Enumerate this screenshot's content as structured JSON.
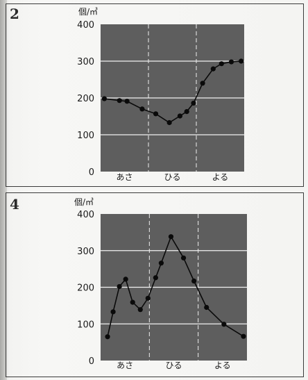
{
  "chart_data": [
    {
      "type": "line",
      "panel_number": "2",
      "unit": "個/㎥",
      "categories": [
        "あさ",
        "ひる",
        "よる"
      ],
      "yticks": [
        "0",
        "100",
        "200",
        "300",
        "400"
      ],
      "ylim": [
        0,
        400
      ],
      "grid": true,
      "x": [
        0.5,
        2.5,
        3.5,
        5.5,
        7.3,
        9.1,
        10.5,
        11.4,
        12.3,
        13.5,
        14.9,
        16.0,
        17.3,
        18.6
      ],
      "values": [
        198,
        193,
        191,
        170,
        157,
        133,
        151,
        163,
        186,
        240,
        279,
        293,
        298,
        300
      ],
      "xlim": [
        0,
        19
      ]
    },
    {
      "type": "line",
      "panel_number": "4",
      "unit": "個/㎥",
      "categories": [
        "あさ",
        "ひる",
        "よる"
      ],
      "yticks": [
        "0",
        "100",
        "200",
        "300",
        "400"
      ],
      "ylim": [
        0,
        400
      ],
      "grid": true,
      "x": [
        1.0,
        1.8,
        2.7,
        3.6,
        4.6,
        5.7,
        6.8,
        7.9,
        8.7,
        10.1,
        11.9,
        13.4,
        15.2,
        17.7,
        20.5
      ],
      "values": [
        65,
        133,
        202,
        222,
        159,
        139,
        170,
        226,
        266,
        338,
        280,
        217,
        145,
        99,
        66
      ],
      "xlim": [
        0,
        21
      ]
    }
  ],
  "icons": {
    "palette": {
      "plot_bg": "#5e5e5e",
      "line": "#0a0a0a",
      "gridline": "#f2f2f2"
    }
  }
}
